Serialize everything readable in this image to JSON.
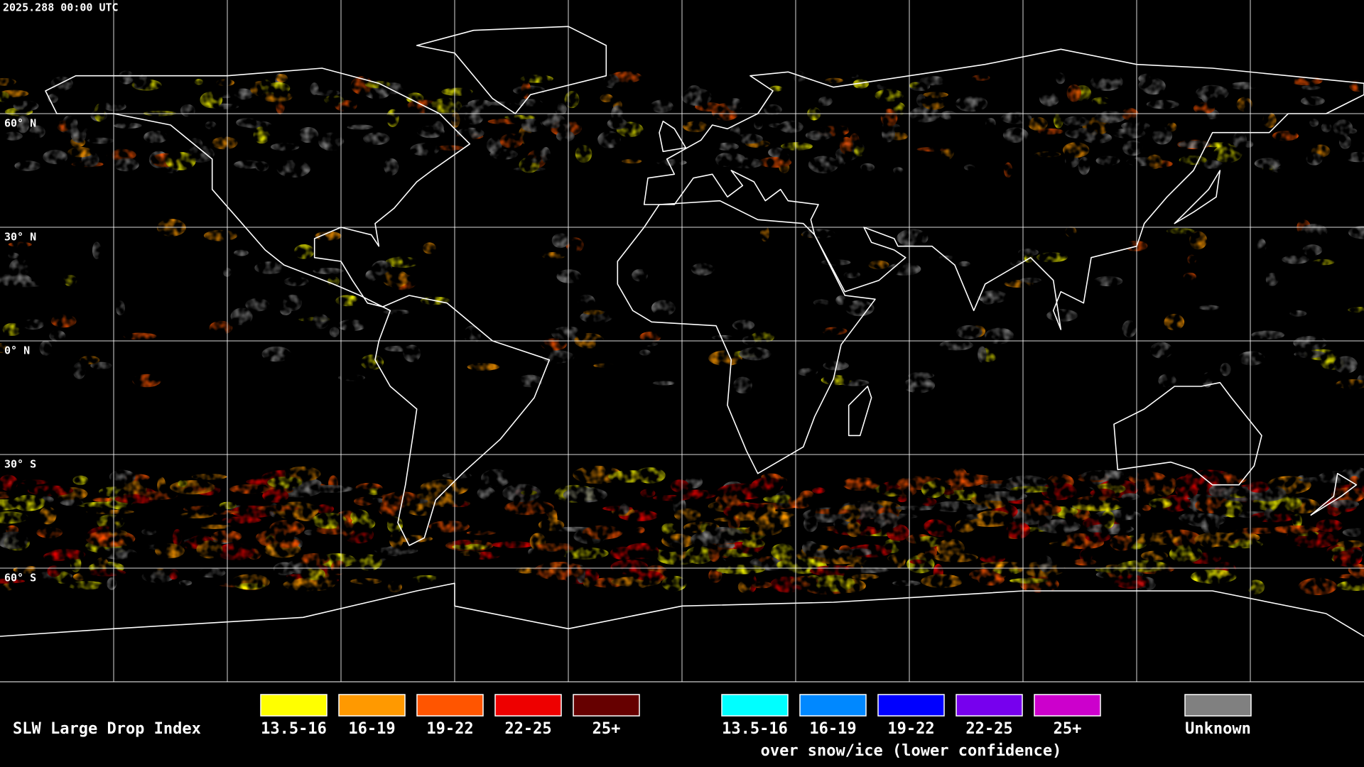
{
  "header": {
    "timestamp": "2025.288 00:00 UTC"
  },
  "map": {
    "lat_labels": [
      "60° N",
      "30° N",
      "0° N",
      "30° S",
      "60° S"
    ]
  },
  "legend": {
    "title": "SLW Large Drop Index",
    "groups": [
      {
        "items": [
          {
            "label": "13.5-16",
            "color": "#ffff00"
          },
          {
            "label": "16-19",
            "color": "#ff9900"
          },
          {
            "label": "19-22",
            "color": "#ff5500"
          },
          {
            "label": "22-25",
            "color": "#ee0000"
          },
          {
            "label": "25+",
            "color": "#660000"
          }
        ]
      },
      {
        "items": [
          {
            "label": "13.5-16",
            "color": "#00ffff"
          },
          {
            "label": "16-19",
            "color": "#0088ff"
          },
          {
            "label": "19-22",
            "color": "#0000ff"
          },
          {
            "label": "22-25",
            "color": "#7700ee"
          },
          {
            "label": "25+",
            "color": "#cc00cc"
          }
        ],
        "caption": "over snow/ice (lower confidence)"
      },
      {
        "items": [
          {
            "label": "Unknown",
            "color": "#808080"
          }
        ]
      }
    ]
  }
}
